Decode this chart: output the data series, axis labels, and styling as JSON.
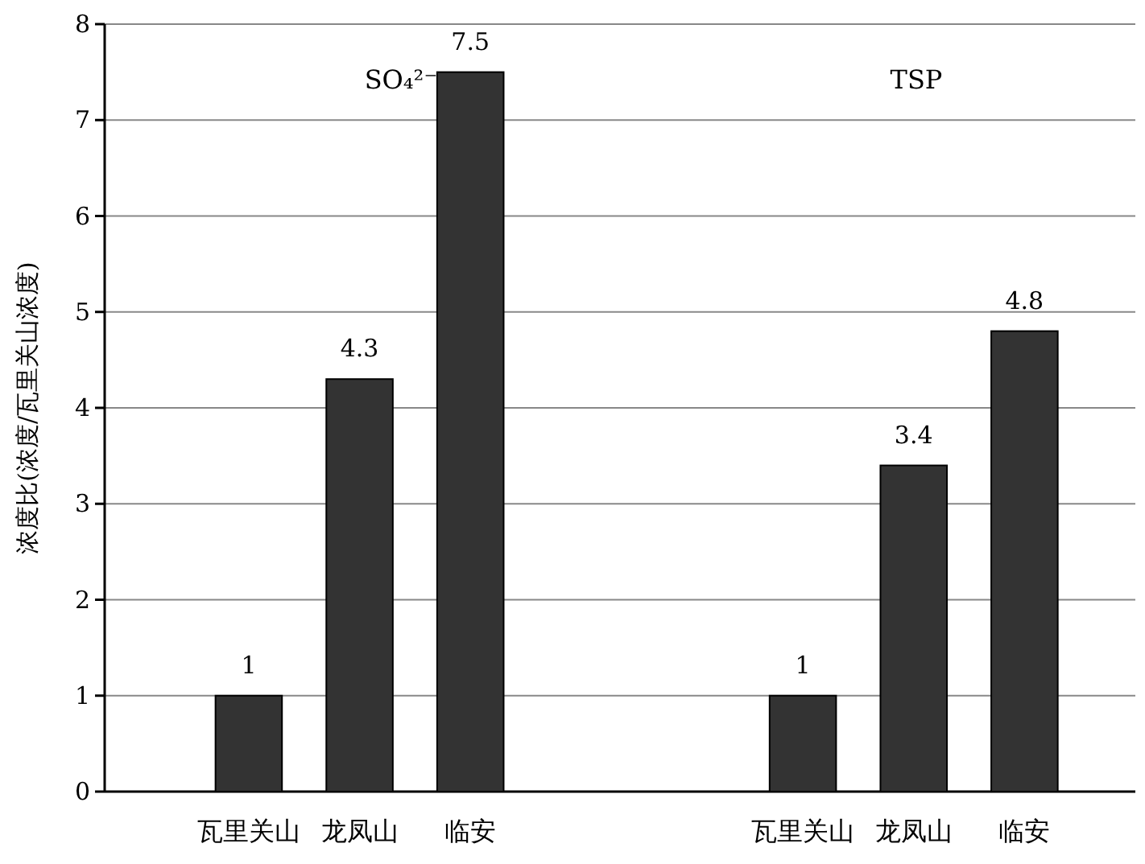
{
  "chart_data": {
    "type": "bar",
    "ylabel": "浓度比(浓度/瓦里关山浓度)",
    "categories": [
      "瓦里关山",
      "龙凤山",
      "临安",
      null,
      null,
      "瓦里关山",
      "龙凤山",
      "临安"
    ],
    "values": [
      1,
      4.3,
      7.5,
      null,
      null,
      1,
      3.4,
      4.8
    ],
    "color": "#333333",
    "ylim": [
      0,
      8
    ],
    "yticks": [
      0,
      1,
      2,
      3,
      4,
      5,
      6,
      7,
      8
    ],
    "grid": "y",
    "data_labels": true,
    "annotations": [
      "SO₄²⁻",
      "TSP"
    ]
  }
}
